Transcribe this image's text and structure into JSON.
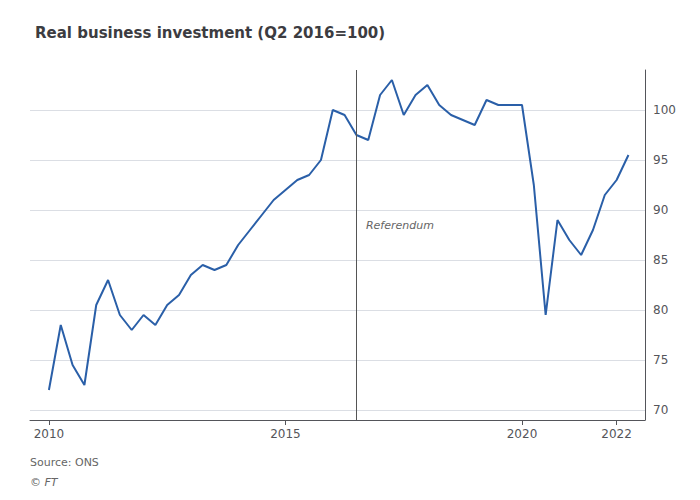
{
  "chart_data": {
    "type": "line",
    "title": "Real business investment (Q2 2016=100)",
    "color": "#2a5fa8",
    "x": [
      2010.0,
      2010.25,
      2010.5,
      2010.75,
      2011.0,
      2011.25,
      2011.5,
      2011.75,
      2012.0,
      2012.25,
      2012.5,
      2012.75,
      2013.0,
      2013.25,
      2013.5,
      2013.75,
      2014.0,
      2014.25,
      2014.5,
      2014.75,
      2015.0,
      2015.25,
      2015.5,
      2015.75,
      2016.0,
      2016.25,
      2016.5,
      2016.75,
      2017.0,
      2017.25,
      2017.5,
      2017.75,
      2018.0,
      2018.25,
      2018.5,
      2018.75,
      2019.0,
      2019.25,
      2019.5,
      2019.75,
      2020.0,
      2020.25,
      2020.5,
      2020.75,
      2021.0,
      2021.25,
      2021.5,
      2021.75,
      2022.0,
      2022.25
    ],
    "values": [
      72.0,
      78.5,
      74.5,
      72.5,
      80.5,
      83.0,
      79.5,
      78.0,
      79.5,
      78.5,
      80.5,
      81.5,
      83.5,
      84.5,
      84.0,
      84.5,
      86.5,
      88.0,
      89.5,
      91.0,
      92.0,
      93.0,
      93.5,
      95.0,
      100.0,
      99.5,
      97.5,
      97.0,
      101.5,
      103.0,
      99.5,
      101.5,
      102.5,
      100.5,
      99.5,
      99.0,
      98.5,
      101.0,
      100.5,
      100.5,
      100.5,
      92.5,
      79.5,
      89.0,
      87.0,
      85.5,
      88.0,
      91.5,
      93.0,
      95.5
    ],
    "xlim": [
      2009.6,
      2022.6
    ],
    "ylim": [
      69,
      104
    ],
    "xticks": [
      2010,
      2015,
      2020,
      2022
    ],
    "yticks": [
      70,
      75,
      80,
      85,
      90,
      95,
      100
    ],
    "grid": "y",
    "vline_x": 2016.5,
    "annotations": [
      {
        "text": "Referendum",
        "x": 2016.7,
        "y": 88.5
      }
    ],
    "source": "Source: ONS",
    "footer": "© FT"
  }
}
